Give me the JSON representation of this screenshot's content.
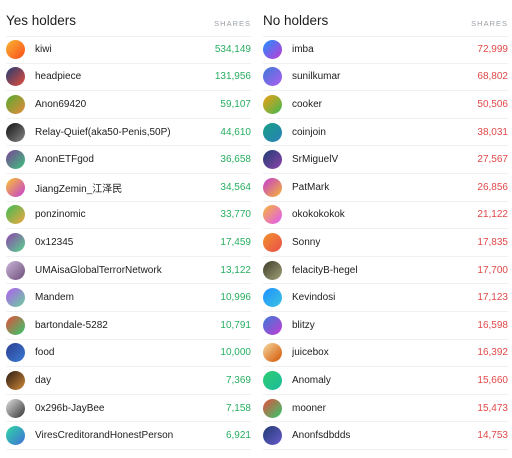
{
  "yes_holders": {
    "title": "Yes holders",
    "shares_label": "SHARES",
    "color": "#27ae60",
    "rows": [
      {
        "name": "kiwi",
        "shares": "534,149",
        "avatar": "gradient-avatar",
        "c1": "#f7b733",
        "c2": "#fc4a1a"
      },
      {
        "name": "headpiece",
        "shares": "131,956",
        "avatar": "gradient-avatar",
        "c1": "#1e3c72",
        "c2": "#e94e3c"
      },
      {
        "name": "Anon69420",
        "shares": "59,107",
        "avatar": "gradient-avatar",
        "c1": "#56ab2f",
        "c2": "#e8893c"
      },
      {
        "name": "Relay-Quief(aka50-Penis,50P)",
        "shares": "44,610",
        "avatar": "photo-avatar",
        "c1": "#111111",
        "c2": "#888888"
      },
      {
        "name": "AnonETFgod",
        "shares": "36,658",
        "avatar": "gradient-avatar",
        "c1": "#7b4397",
        "c2": "#3cc47c"
      },
      {
        "name": "JiangZemin_江泽民",
        "shares": "34,564",
        "avatar": "gradient-avatar",
        "c1": "#fbc531",
        "c2": "#c23bd4"
      },
      {
        "name": "ponzinomic",
        "shares": "33,770",
        "avatar": "gradient-avatar",
        "c1": "#3cba54",
        "c2": "#f4a742"
      },
      {
        "name": "0x12345",
        "shares": "17,459",
        "avatar": "gradient-avatar",
        "c1": "#8e44ad",
        "c2": "#58d68d"
      },
      {
        "name": "UMAisaGlobalTerrorNetwork",
        "shares": "13,122",
        "avatar": "photo-avatar",
        "c1": "#c9b7d8",
        "c2": "#6d4c7a"
      },
      {
        "name": "Mandem",
        "shares": "10,996",
        "avatar": "gradient-avatar",
        "c1": "#b05cf2",
        "c2": "#6ad19a"
      },
      {
        "name": "bartondale-5282",
        "shares": "10,791",
        "avatar": "gradient-avatar",
        "c1": "#e74c3c",
        "c2": "#2ecc71"
      },
      {
        "name": "food",
        "shares": "10,000",
        "avatar": "gradient-avatar",
        "c1": "#2c3e90",
        "c2": "#3a7bd5"
      },
      {
        "name": "day",
        "shares": "7,369",
        "avatar": "photo-avatar",
        "c1": "#2b1a10",
        "c2": "#d08a3a"
      },
      {
        "name": "0x296b-JayBee",
        "shares": "7,158",
        "avatar": "photo-avatar",
        "c1": "#e0e0e0",
        "c2": "#333333"
      },
      {
        "name": "ViresCreditorandHonestPerson",
        "shares": "6,921",
        "avatar": "gradient-avatar",
        "c1": "#2ed8a3",
        "c2": "#3f6fd8"
      }
    ]
  },
  "no_holders": {
    "title": "No holders",
    "shares_label": "SHARES",
    "color": "#e04848",
    "rows": [
      {
        "name": "imba",
        "shares": "72,999",
        "avatar": "gradient-avatar",
        "c1": "#1e90ff",
        "c2": "#c23bd4"
      },
      {
        "name": "sunilkumar",
        "shares": "68,802",
        "avatar": "gradient-avatar",
        "c1": "#3a7bd5",
        "c2": "#b05cf2"
      },
      {
        "name": "cooker",
        "shares": "50,506",
        "avatar": "gradient-avatar",
        "c1": "#f39c12",
        "c2": "#3cba54"
      },
      {
        "name": "coinjoin",
        "shares": "38,031",
        "avatar": "gradient-avatar",
        "c1": "#16a085",
        "c2": "#2980b9"
      },
      {
        "name": "SrMiguelV",
        "shares": "27,567",
        "avatar": "gradient-avatar",
        "c1": "#1e3c72",
        "c2": "#8e44ad"
      },
      {
        "name": "PatMark",
        "shares": "26,856",
        "avatar": "gradient-avatar",
        "c1": "#c23bd4",
        "c2": "#f7b733"
      },
      {
        "name": "okokokokok",
        "shares": "21,122",
        "avatar": "gradient-avatar",
        "c1": "#f7b733",
        "c2": "#e056fd"
      },
      {
        "name": "Sonny",
        "shares": "17,835",
        "avatar": "gradient-avatar",
        "c1": "#f0932b",
        "c2": "#eb4d4b"
      },
      {
        "name": "felacityB-hegel",
        "shares": "17,700",
        "avatar": "photo-avatar",
        "c1": "#3d3d2a",
        "c2": "#a3a27a"
      },
      {
        "name": "Kevindosi",
        "shares": "17,123",
        "avatar": "gradient-avatar",
        "c1": "#1e90ff",
        "c2": "#3cc4e0"
      },
      {
        "name": "blitzy",
        "shares": "16,598",
        "avatar": "gradient-avatar",
        "c1": "#3a7bd5",
        "c2": "#c23bd4"
      },
      {
        "name": "juicebox",
        "shares": "16,392",
        "avatar": "photo-avatar",
        "c1": "#f5d7a1",
        "c2": "#d35400"
      },
      {
        "name": "Anomaly",
        "shares": "15,660",
        "avatar": "gradient-avatar",
        "c1": "#2ecc71",
        "c2": "#1abc9c"
      },
      {
        "name": "mooner",
        "shares": "15,473",
        "avatar": "gradient-avatar",
        "c1": "#e74c3c",
        "c2": "#2ecc71"
      },
      {
        "name": "Anonfsdbdds",
        "shares": "14,753",
        "avatar": "gradient-avatar",
        "c1": "#1e3c72",
        "c2": "#6a5acd"
      }
    ]
  }
}
